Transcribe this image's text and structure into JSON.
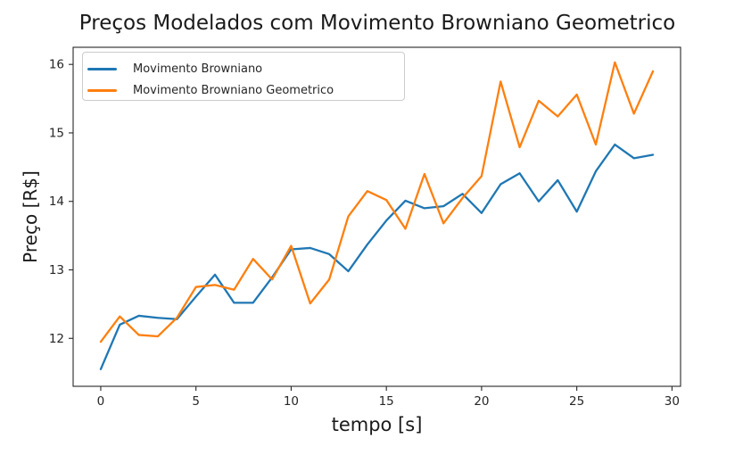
{
  "chart_data": {
    "type": "line",
    "title": "Preços Modelados com Movimento Browniano Geometrico",
    "xlabel": "tempo [s]",
    "ylabel": "Preço [R$]",
    "xlim": [
      -1.45,
      30.45
    ],
    "ylim": [
      11.3,
      16.25
    ],
    "xticks": [
      0,
      5,
      10,
      15,
      20,
      25,
      30
    ],
    "yticks": [
      12,
      13,
      14,
      15,
      16
    ],
    "grid": false,
    "legend_position": "upper left",
    "x": [
      0,
      1,
      2,
      3,
      4,
      5,
      6,
      7,
      8,
      9,
      10,
      11,
      12,
      13,
      14,
      15,
      16,
      17,
      18,
      19,
      20,
      21,
      22,
      23,
      24,
      25,
      26,
      27,
      28,
      29
    ],
    "series": [
      {
        "name": "Movimento Browniano",
        "color": "#1f77b4",
        "values": [
          11.55,
          12.2,
          12.33,
          12.3,
          12.28,
          12.61,
          12.93,
          12.52,
          12.52,
          12.89,
          13.3,
          13.32,
          13.23,
          12.98,
          13.37,
          13.72,
          14.01,
          13.9,
          13.93,
          14.11,
          13.83,
          14.25,
          14.41,
          14.0,
          14.31,
          13.85,
          14.44,
          14.83,
          14.63,
          14.68
        ]
      },
      {
        "name": "Movimento Browniano Geometrico",
        "color": "#ff7f0e",
        "values": [
          11.95,
          12.32,
          12.05,
          12.03,
          12.3,
          12.75,
          12.78,
          12.71,
          13.16,
          12.86,
          13.35,
          12.51,
          12.86,
          13.78,
          14.15,
          14.02,
          13.6,
          14.4,
          13.68,
          14.05,
          14.37,
          15.75,
          14.79,
          15.47,
          15.24,
          15.56,
          14.83,
          16.03,
          15.28,
          15.9
        ]
      }
    ],
    "axis_color": "#262626",
    "tick_label_color": "#262626"
  }
}
